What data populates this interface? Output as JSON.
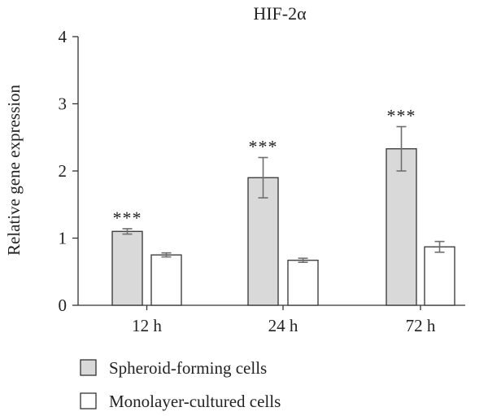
{
  "chart_data": {
    "type": "bar",
    "title": "HIF-2α",
    "ylabel": "Relative gene expression",
    "xlabel": "",
    "ylim": [
      0,
      4
    ],
    "yticks": [
      "0",
      "1",
      "2",
      "3",
      "4"
    ],
    "categories": [
      "12 h",
      "24 h",
      "72 h"
    ],
    "series": [
      {
        "name": "Spheroid-forming cells",
        "color": "#d9d9d9",
        "values": [
          1.1,
          1.9,
          2.33
        ],
        "errors": [
          0.04,
          0.3,
          0.33
        ]
      },
      {
        "name": "Monolayer-cultured cells",
        "color": "#ffffff",
        "values": [
          0.75,
          0.67,
          0.87
        ],
        "errors": [
          0.03,
          0.03,
          0.08
        ]
      }
    ],
    "annotations": [
      "***",
      "***",
      "***"
    ],
    "legend_position": "bottom-left"
  }
}
